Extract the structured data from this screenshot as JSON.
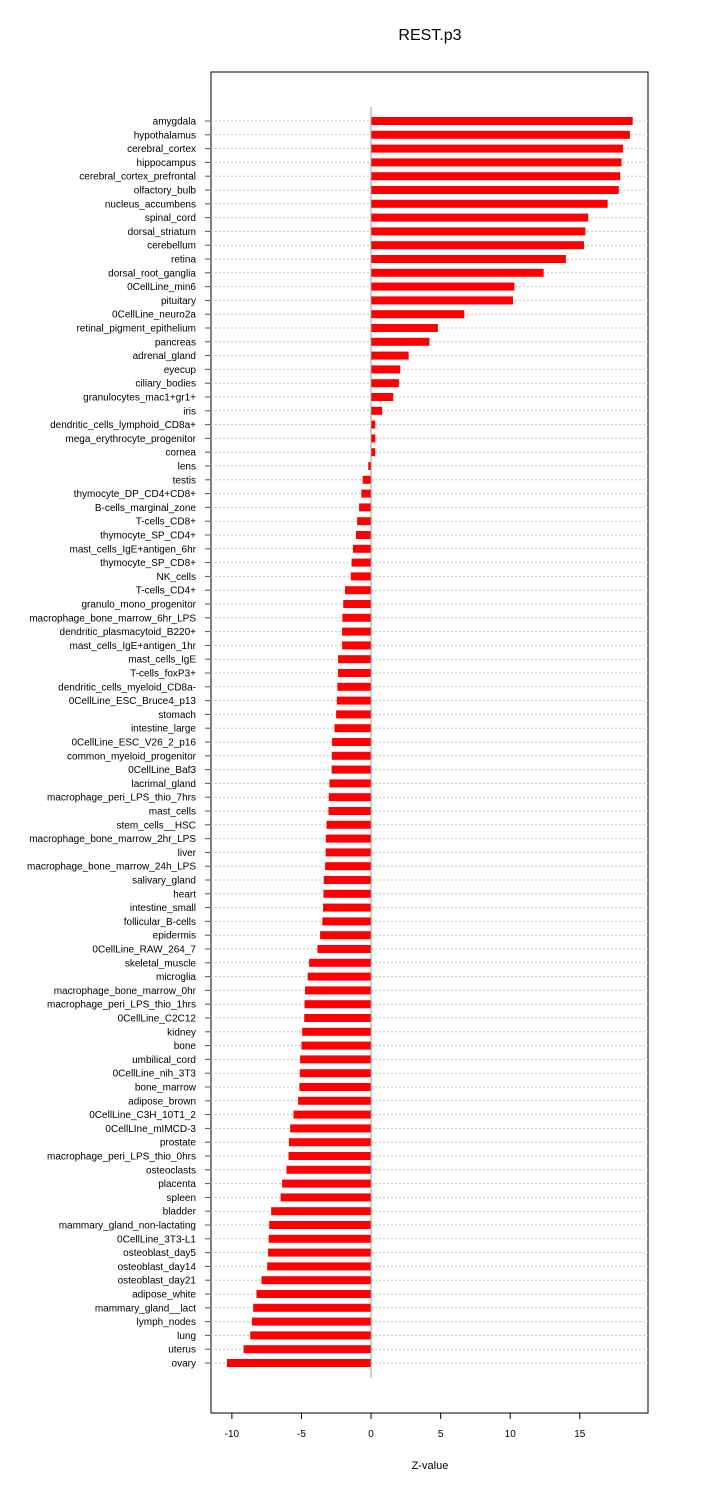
{
  "chart_data": {
    "type": "bar",
    "orientation": "horizontal",
    "title": "REST.p3",
    "xlabel": "Z-value",
    "ylabel": "",
    "xlim": [
      -11.5,
      19.9
    ],
    "xticks": [
      -10,
      -5,
      0,
      5,
      10,
      15
    ],
    "xtick_labels": [
      "-10",
      "-5",
      "0",
      "5",
      "10",
      "15"
    ],
    "grid": true,
    "bar_color": "#ff0000",
    "zero_line_color": "#66dd55",
    "categories": [
      "amygdala",
      "hypothalamus",
      "cerebral_cortex",
      "hippocampus",
      "cerebral_cortex_prefrontal",
      "olfactory_bulb",
      "nucleus_accumbens",
      "spinal_cord",
      "dorsal_striatum",
      "cerebellum",
      "retina",
      "dorsal_root_ganglia",
      "0CellLine_min6",
      "pituitary",
      "0CellLine_neuro2a",
      "retinal_pigment_epithelium",
      "pancreas",
      "adrenal_gland",
      "eyecup",
      "ciliary_bodies",
      "granulocytes_mac1+gr1+",
      "iris",
      "dendritic_cells_lymphoid_CD8a+",
      "mega_erythrocyte_progenitor",
      "cornea",
      "lens",
      "testis",
      "thymocyte_DP_CD4+CD8+",
      "B-cells_marginal_zone",
      "T-cells_CD8+",
      "thymocyte_SP_CD4+",
      "mast_cells_IgE+antigen_6hr",
      "thymocyte_SP_CD8+",
      "NK_cells",
      "T-cells_CD4+",
      "granulo_mono_progenitor",
      "macrophage_bone_marrow_6hr_LPS",
      "dendritic_plasmacytoid_B220+",
      "mast_cells_IgE+antigen_1hr",
      "mast_cells_IgE",
      "T-cells_foxP3+",
      "dendritic_cells_myeloid_CD8a-",
      "0CellLine_ESC_Bruce4_p13",
      "stomach",
      "intestine_large",
      "0CellLine_ESC_V26_2_p16",
      "common_myeloid_progenitor",
      "0CellLine_Baf3",
      "lacrimal_gland",
      "macrophage_peri_LPS_thio_7hrs",
      "mast_cells",
      "stem_cells__HSC",
      "macrophage_bone_marrow_2hr_LPS",
      "liver",
      "macrophage_bone_marrow_24h_LPS",
      "salivary_gland",
      "heart",
      "intestine_small",
      "follicular_B-cells",
      "epidermis",
      "0CellLine_RAW_264_7",
      "skeletal_muscle",
      "microglia",
      "macrophage_bone_marrow_0hr",
      "macrophage_peri_LPS_thio_1hrs",
      "0CellLine_C2C12",
      "kidney",
      "bone",
      "umbilical_cord",
      "0CellLine_nih_3T3",
      "bone_marrow",
      "adipose_brown",
      "0CellLine_C3H_10T1_2",
      "0CellLIne_mIMCD-3",
      "prostate",
      "macrophage_peri_LPS_thio_0hrs",
      "osteoclasts",
      "placenta",
      "spleen",
      "bladder",
      "mammary_gland_non-lactating",
      "0CellLine_3T3-L1",
      "osteoblast_day5",
      "osteoblast_day14",
      "osteoblast_day21",
      "adipose_white",
      "mammary_gland__lact",
      "lymph_nodes",
      "lung",
      "uterus",
      "ovary"
    ],
    "values": [
      18.8,
      18.6,
      18.1,
      18.0,
      17.9,
      17.8,
      17.0,
      15.6,
      15.4,
      15.3,
      14.0,
      12.4,
      10.3,
      10.2,
      6.7,
      4.8,
      4.2,
      2.7,
      2.1,
      2.0,
      1.6,
      0.8,
      0.3,
      0.3,
      0.3,
      -0.2,
      -0.6,
      -0.7,
      -0.86,
      -1.0,
      -1.08,
      -1.3,
      -1.4,
      -1.46,
      -1.87,
      -2.0,
      -2.06,
      -2.08,
      -2.08,
      -2.37,
      -2.37,
      -2.42,
      -2.46,
      -2.51,
      -2.63,
      -2.8,
      -2.82,
      -2.83,
      -2.99,
      -3.04,
      -3.06,
      -3.2,
      -3.25,
      -3.26,
      -3.3,
      -3.4,
      -3.42,
      -3.45,
      -3.5,
      -3.66,
      -3.85,
      -4.45,
      -4.55,
      -4.74,
      -4.78,
      -4.8,
      -4.95,
      -5.0,
      -5.1,
      -5.12,
      -5.15,
      -5.24,
      -5.57,
      -5.81,
      -5.9,
      -5.93,
      -6.08,
      -6.39,
      -6.5,
      -7.18,
      -7.32,
      -7.35,
      -7.4,
      -7.46,
      -7.87,
      -8.23,
      -8.47,
      -8.56,
      -8.68,
      -9.16,
      -10.36
    ]
  }
}
